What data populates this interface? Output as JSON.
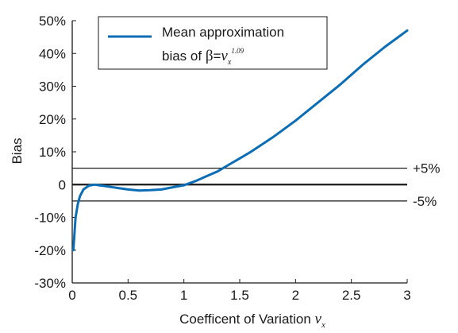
{
  "chart_data": {
    "type": "line",
    "title": "",
    "xlabel": {
      "text": "Coefficent of Variation ",
      "var": "v",
      "sub": "x"
    },
    "ylabel": "Bias",
    "xlim": [
      0,
      3
    ],
    "ylim": [
      -30,
      50
    ],
    "x_ticks": [
      0,
      0.5,
      1,
      1.5,
      2,
      2.5,
      3
    ],
    "x_tick_labels": [
      "0",
      "0.5",
      "1",
      "1.5",
      "2",
      "2.5",
      "3"
    ],
    "y_ticks": [
      -30,
      -20,
      -10,
      0,
      10,
      20,
      30,
      40,
      50
    ],
    "y_tick_labels": [
      "-30%",
      "-20%",
      "-10%",
      "0",
      "10%",
      "20%",
      "30%",
      "40%",
      "50%"
    ],
    "grid": false,
    "legend": {
      "placement": "top-left",
      "line1": "Mean approximation",
      "line2_prefix": "bias of ",
      "beta": "β",
      "equals": "=",
      "var": "v",
      "sub": "x",
      "exponent": "1.09"
    },
    "reference_lines": [
      {
        "y": 5,
        "label": "+5%"
      },
      {
        "y": 0,
        "label": ""
      },
      {
        "y": -5,
        "label": "-5%"
      }
    ],
    "series": [
      {
        "color": "#0b6db5",
        "x": [
          0.01,
          0.02,
          0.03,
          0.05,
          0.07,
          0.1,
          0.15,
          0.2,
          0.3,
          0.4,
          0.5,
          0.6,
          0.7,
          0.8,
          0.9,
          1.0,
          1.1,
          1.2,
          1.3,
          1.4,
          1.5,
          1.6,
          1.8,
          2.0,
          2.2,
          2.4,
          2.6,
          2.8,
          3.0
        ],
        "y": [
          -20,
          -15,
          -10,
          -6,
          -3.5,
          -1.5,
          -0.3,
          0,
          -0.5,
          -1,
          -1.5,
          -1.8,
          -1.7,
          -1.5,
          -0.8,
          -0.2,
          1,
          2.5,
          4,
          6,
          8,
          10,
          14.5,
          19.5,
          25,
          30.5,
          36.5,
          42,
          47
        ]
      }
    ]
  }
}
